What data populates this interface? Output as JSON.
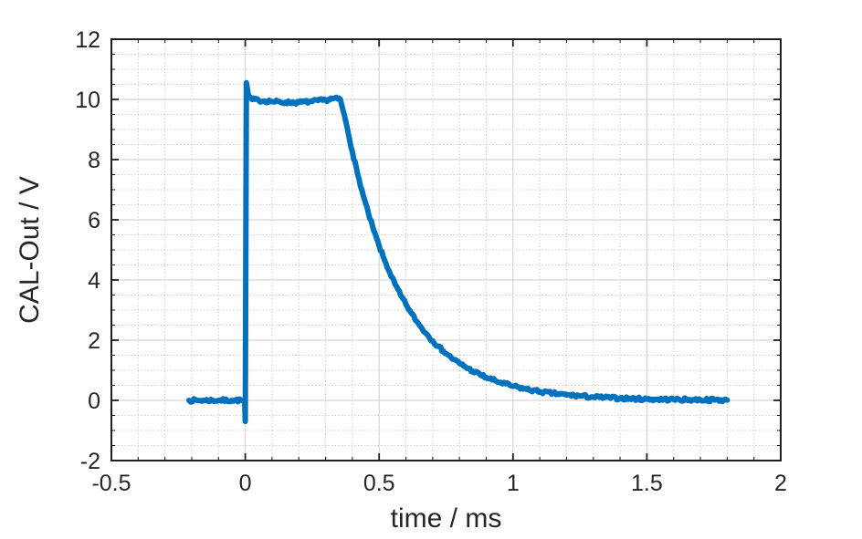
{
  "chart_data": {
    "type": "line",
    "title": "",
    "xlabel": "time / ms",
    "ylabel": "CAL-Out / V",
    "xlim": [
      -0.5,
      2
    ],
    "ylim": [
      -2,
      12
    ],
    "xticks": [
      -0.5,
      0,
      0.5,
      1,
      1.5,
      2
    ],
    "xtick_labels": [
      "-0.5",
      "0",
      "0.5",
      "1",
      "1.5",
      "2"
    ],
    "yticks": [
      -2,
      0,
      2,
      4,
      6,
      8,
      10,
      12
    ],
    "ytick_labels": [
      "-2",
      "0",
      "2",
      "4",
      "6",
      "8",
      "10",
      "12"
    ],
    "x_minor_step": 0.1,
    "y_minor_step": 0.5,
    "grid": "on",
    "minor_grid": "on",
    "legend": null,
    "series": [
      {
        "name": "CAL-Out",
        "points": [
          [
            -0.21,
            0.0
          ],
          [
            -0.15,
            0.0
          ],
          [
            -0.1,
            0.0
          ],
          [
            -0.05,
            0.0
          ],
          [
            -0.01,
            0.0
          ],
          [
            -0.002,
            0.0
          ],
          [
            0.0,
            -0.7
          ],
          [
            0.004,
            10.55
          ],
          [
            0.012,
            10.12
          ],
          [
            0.025,
            10.0
          ],
          [
            0.05,
            9.97
          ],
          [
            0.1,
            9.93
          ],
          [
            0.15,
            9.9
          ],
          [
            0.2,
            9.9
          ],
          [
            0.25,
            9.93
          ],
          [
            0.3,
            9.98
          ],
          [
            0.33,
            10.03
          ],
          [
            0.355,
            10.0
          ],
          [
            0.38,
            9.09
          ],
          [
            0.4,
            8.26
          ],
          [
            0.42,
            7.51
          ],
          [
            0.44,
            6.83
          ],
          [
            0.46,
            6.21
          ],
          [
            0.48,
            5.64
          ],
          [
            0.5,
            5.13
          ],
          [
            0.52,
            4.66
          ],
          [
            0.54,
            4.24
          ],
          [
            0.56,
            3.85
          ],
          [
            0.58,
            3.5
          ],
          [
            0.6,
            3.19
          ],
          [
            0.62,
            2.9
          ],
          [
            0.64,
            2.63
          ],
          [
            0.66,
            2.39
          ],
          [
            0.68,
            2.18
          ],
          [
            0.7,
            1.98
          ],
          [
            0.72,
            1.8
          ],
          [
            0.74,
            1.64
          ],
          [
            0.76,
            1.49
          ],
          [
            0.78,
            1.35
          ],
          [
            0.8,
            1.23
          ],
          [
            0.85,
            0.97
          ],
          [
            0.9,
            0.76
          ],
          [
            0.95,
            0.6
          ],
          [
            1.0,
            0.47
          ],
          [
            1.05,
            0.37
          ],
          [
            1.1,
            0.29
          ],
          [
            1.15,
            0.23
          ],
          [
            1.2,
            0.18
          ],
          [
            1.3,
            0.11
          ],
          [
            1.4,
            0.07
          ],
          [
            1.5,
            0.04
          ],
          [
            1.6,
            0.03
          ],
          [
            1.7,
            0.02
          ],
          [
            1.8,
            0.01
          ]
        ]
      }
    ],
    "annotations": {
      "pulse_amplitude_V": 10,
      "overshoot_peak_V": 10.55,
      "undershoot_V": -0.7,
      "rise_time_ms": 0,
      "fall_start_ms": 0.355,
      "decay_time_constant_ms": 0.21,
      "trace_start_ms": -0.21,
      "trace_end_ms": 1.8
    }
  },
  "colors": {
    "line": "#0072BD",
    "axes": "#1f1f1f",
    "tick_text": "#262626",
    "major_grid": "#d6d6d6",
    "minor_grid": "#c4c4c4",
    "background": "#ffffff"
  }
}
